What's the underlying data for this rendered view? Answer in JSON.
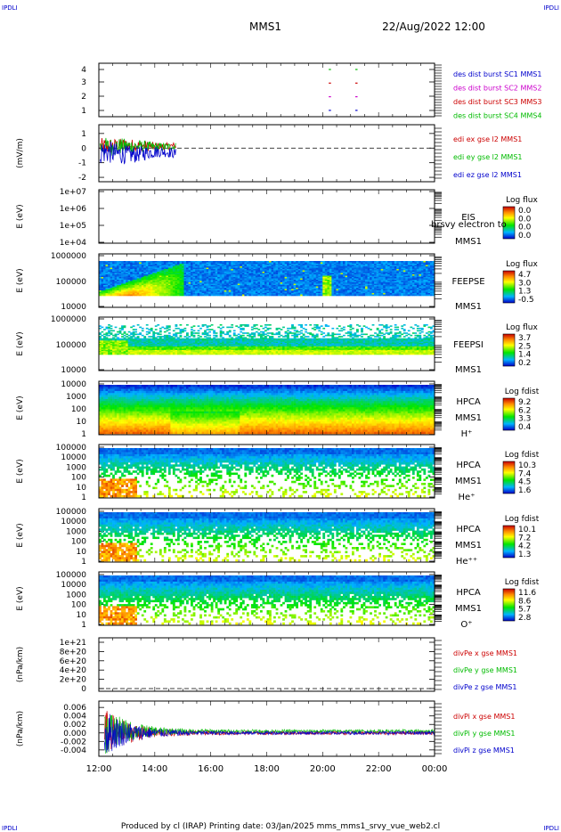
{
  "corner_mark": "IPDLI",
  "title": "MMS1",
  "datetime": "22/Aug/2022 12:00",
  "footer": "Produced by cl (IRAP)   Printing date: 03/Jan/2025   mms_mms1_srvy_vue_web2.cl",
  "colors": {
    "red": "#cc0000",
    "green": "#00bb00",
    "blue": "#0000cc",
    "magenta": "#cc00cc"
  },
  "chart_data": {
    "type": "multi-panel time series and spectrograms",
    "time_axis": {
      "ticks": [
        "12:00",
        "14:00",
        "16:00",
        "18:00",
        "20:00",
        "22:00",
        "00:00"
      ],
      "range_hours": [
        12,
        24
      ]
    },
    "panels": [
      {
        "id": "burst",
        "type": "scatter",
        "ylabel": "",
        "ticks": [
          "4",
          "3",
          "2",
          "1"
        ],
        "ylim": [
          0.5,
          4.5
        ],
        "legend": [
          {
            "text": "des dist burst SC1 MMS1",
            "color": "#0000cc"
          },
          {
            "text": "des dist burst SC2 MMS2",
            "color": "#cc00cc"
          },
          {
            "text": "des dist burst SC3 MMS3",
            "color": "#cc0000"
          },
          {
            "text": "des dist burst SC4 MMS4",
            "color": "#00bb00"
          }
        ],
        "markers": [
          {
            "x": 20.25,
            "y": 4,
            "color": "#00bb00"
          },
          {
            "x": 21.2,
            "y": 4,
            "color": "#00bb00"
          },
          {
            "x": 20.25,
            "y": 3,
            "color": "#cc0000"
          },
          {
            "x": 21.2,
            "y": 3,
            "color": "#cc0000"
          },
          {
            "x": 20.25,
            "y": 2,
            "color": "#cc00cc"
          },
          {
            "x": 21.2,
            "y": 2,
            "color": "#cc00cc"
          },
          {
            "x": 20.25,
            "y": 1,
            "color": "#0000cc"
          },
          {
            "x": 21.2,
            "y": 1,
            "color": "#0000cc"
          }
        ]
      },
      {
        "id": "edi",
        "type": "line",
        "ylabel": "(mV/m)",
        "ticks": [
          "1",
          "0",
          "-1",
          "-2"
        ],
        "ylim": [
          -2.3,
          1.6
        ],
        "data_range_hours": [
          12.05,
          14.75
        ],
        "dashed_zero": true,
        "legend": [
          {
            "text": "edi ex gse l2 MMS1",
            "color": "#cc0000"
          },
          {
            "text": "edi ey gse l2 MMS1",
            "color": "#00bb00"
          },
          {
            "text": "edi ez gse l2 MMS1",
            "color": "#0000cc"
          }
        ]
      },
      {
        "id": "eis",
        "type": "heatmap",
        "ylabel": "E (eV)",
        "ticks": [
          "1e+07",
          "1e+06",
          "1e+05",
          "1e+04"
        ],
        "labels": [
          "EIS",
          "MMS1"
        ],
        "overlap_label": "brsvy electron to",
        "colorbar": {
          "title": "Log flux",
          "values": [
            "0.0",
            "0.0",
            "0.0",
            "0.0"
          ]
        }
      },
      {
        "id": "feepse",
        "type": "heatmap",
        "ylabel": "E (eV)",
        "ticks": [
          "1000000",
          "100000",
          "10000"
        ],
        "labels": [
          "FEEPSE",
          "MMS1"
        ],
        "colorbar": {
          "title": "Log flux",
          "values": [
            "4.7",
            "3.0",
            "1.3",
            "-0.5"
          ]
        }
      },
      {
        "id": "feepsi",
        "type": "heatmap",
        "ylabel": "E (eV)",
        "ticks": [
          "1000000",
          "100000",
          "10000"
        ],
        "labels": [
          "FEEPSI",
          "MMS1"
        ],
        "colorbar": {
          "title": "Log flux",
          "values": [
            "3.7",
            "2.5",
            "1.4",
            "0.2"
          ]
        }
      },
      {
        "id": "hpca_h",
        "type": "heatmap",
        "ylabel": "E (eV)",
        "ticks": [
          "10000",
          "1000",
          "100",
          "10",
          "1"
        ],
        "labels": [
          "HPCA",
          "MMS1",
          "H⁺"
        ],
        "colorbar": {
          "title": "Log fdist",
          "values": [
            "9.2",
            "6.2",
            "3.3",
            "0.4"
          ]
        }
      },
      {
        "id": "hpca_he",
        "type": "heatmap",
        "ylabel": "E (eV)",
        "ticks": [
          "100000",
          "10000",
          "1000",
          "100",
          "10",
          "1"
        ],
        "labels": [
          "HPCA",
          "MMS1",
          "He⁺"
        ],
        "colorbar": {
          "title": "Log fdist",
          "values": [
            "10.3",
            "7.4",
            "4.5",
            "1.6"
          ]
        }
      },
      {
        "id": "hpca_hepp",
        "type": "heatmap",
        "ylabel": "E (eV)",
        "ticks": [
          "100000",
          "10000",
          "1000",
          "100",
          "10",
          "1"
        ],
        "labels": [
          "HPCA",
          "MMS1",
          "He⁺⁺"
        ],
        "colorbar": {
          "title": "Log fdist",
          "values": [
            "10.1",
            "7.2",
            "4.2",
            "1.3"
          ]
        }
      },
      {
        "id": "hpca_o",
        "type": "heatmap",
        "ylabel": "E (eV)",
        "ticks": [
          "100000",
          "10000",
          "1000",
          "100",
          "10",
          "1"
        ],
        "labels": [
          "HPCA",
          "MMS1",
          "O⁺"
        ],
        "colorbar": {
          "title": "Log fdist",
          "values": [
            "11.6",
            "8.6",
            "5.7",
            "2.8"
          ]
        }
      },
      {
        "id": "divpe",
        "type": "line",
        "ylabel": "(nPa/km)",
        "ticks": [
          "1e+21",
          "8e+20",
          "6e+20",
          "4e+20",
          "2e+20",
          "0"
        ],
        "ylim": [
          0,
          1e+21
        ],
        "dashed_zero": true,
        "legend": [
          {
            "text": "divPe x gse MMS1",
            "color": "#cc0000"
          },
          {
            "text": "divPe y gse MMS1",
            "color": "#00bb00"
          },
          {
            "text": "divPe z gse MMS1",
            "color": "#0000cc"
          }
        ]
      },
      {
        "id": "divpi",
        "type": "line",
        "ylabel": "(nPa/km)",
        "ticks": [
          "0.006",
          "0.004",
          "0.002",
          "0.000",
          "-0.002",
          "-0.004"
        ],
        "ylim": [
          -0.0055,
          0.0075
        ],
        "legend": [
          {
            "text": "divPi x gse MMS1",
            "color": "#cc0000"
          },
          {
            "text": "divPi y gse MMS1",
            "color": "#00bb00"
          },
          {
            "text": "divPi z gse MMS1",
            "color": "#0000cc"
          }
        ]
      }
    ]
  }
}
